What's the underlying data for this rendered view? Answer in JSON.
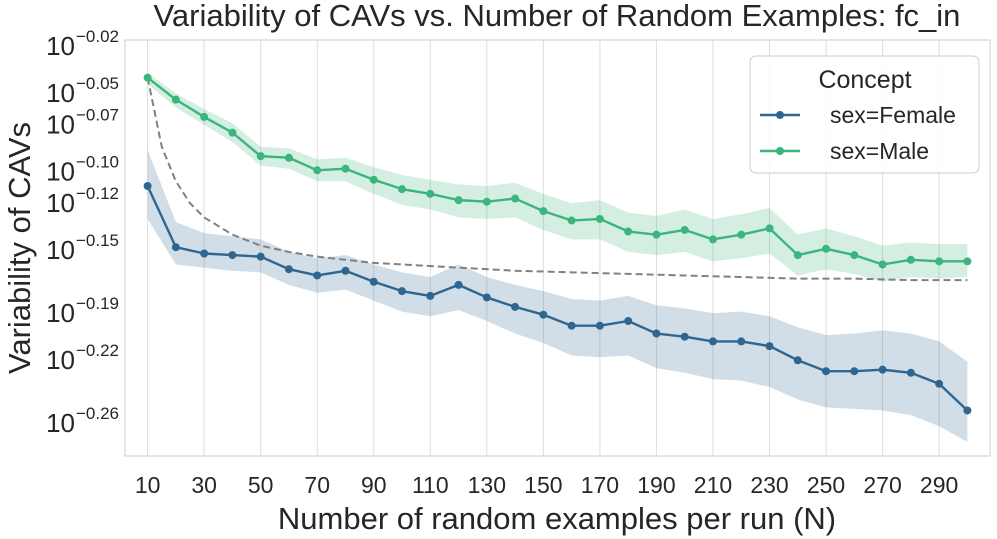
{
  "chart_data": {
    "type": "line",
    "title": "Variability of CAVs vs. Number of Random Examples: fc_in",
    "xlabel": "Number of random examples per run (N)",
    "ylabel": "Variability of CAVs",
    "xlim": [
      2,
      308
    ],
    "ylim_exponent": [
      -0.285,
      -0.02
    ],
    "x_ticks": [
      10,
      30,
      50,
      70,
      90,
      110,
      130,
      150,
      170,
      190,
      210,
      230,
      250,
      270,
      290
    ],
    "x_tick_labels": [
      "10",
      "30",
      "50",
      "70",
      "90",
      "110",
      "130",
      "150",
      "170",
      "190",
      "210",
      "230",
      "250",
      "270",
      "290"
    ],
    "y_tick_base": "10",
    "y_ticks": [
      -0.02,
      -0.05,
      -0.07,
      -0.1,
      -0.12,
      -0.15,
      -0.19,
      -0.22,
      -0.26
    ],
    "y_tick_labels": [
      "−0.02",
      "−0.05",
      "−0.07",
      "−0.10",
      "−0.12",
      "−0.15",
      "−0.19",
      "−0.22",
      "−0.26"
    ],
    "grid": "vertical",
    "x": [
      10,
      20,
      30,
      40,
      50,
      60,
      70,
      80,
      90,
      100,
      110,
      120,
      130,
      140,
      150,
      160,
      170,
      180,
      190,
      200,
      210,
      220,
      230,
      240,
      250,
      260,
      270,
      280,
      290,
      300
    ],
    "series": [
      {
        "name": "sex=Female",
        "color": "#2f6690",
        "values": [
          -0.113,
          -0.152,
          -0.156,
          -0.157,
          -0.158,
          -0.166,
          -0.17,
          -0.167,
          -0.174,
          -0.18,
          -0.183,
          -0.176,
          -0.184,
          -0.19,
          -0.195,
          -0.202,
          -0.202,
          -0.199,
          -0.207,
          -0.209,
          -0.212,
          -0.212,
          -0.215,
          -0.224,
          -0.231,
          -0.231,
          -0.23,
          -0.232,
          -0.239,
          -0.256
        ],
        "lower": [
          -0.134,
          -0.163,
          -0.165,
          -0.167,
          -0.168,
          -0.176,
          -0.181,
          -0.179,
          -0.186,
          -0.193,
          -0.196,
          -0.192,
          -0.199,
          -0.207,
          -0.213,
          -0.221,
          -0.222,
          -0.221,
          -0.229,
          -0.232,
          -0.236,
          -0.237,
          -0.241,
          -0.249,
          -0.254,
          -0.255,
          -0.256,
          -0.259,
          -0.266,
          -0.276
        ],
        "upper": [
          -0.09,
          -0.136,
          -0.143,
          -0.145,
          -0.147,
          -0.155,
          -0.159,
          -0.157,
          -0.163,
          -0.168,
          -0.171,
          -0.163,
          -0.171,
          -0.176,
          -0.18,
          -0.185,
          -0.186,
          -0.183,
          -0.189,
          -0.191,
          -0.194,
          -0.193,
          -0.196,
          -0.203,
          -0.208,
          -0.207,
          -0.205,
          -0.207,
          -0.212,
          -0.225
        ]
      },
      {
        "name": "sex=Male",
        "color": "#3bb57d",
        "values": [
          -0.044,
          -0.058,
          -0.069,
          -0.079,
          -0.094,
          -0.095,
          -0.103,
          -0.102,
          -0.109,
          -0.115,
          -0.118,
          -0.122,
          -0.123,
          -0.121,
          -0.129,
          -0.135,
          -0.134,
          -0.142,
          -0.144,
          -0.141,
          -0.147,
          -0.144,
          -0.14,
          -0.157,
          -0.153,
          -0.157,
          -0.163,
          -0.16,
          -0.161,
          -0.161
        ],
        "lower": [
          -0.048,
          -0.063,
          -0.074,
          -0.085,
          -0.1,
          -0.102,
          -0.11,
          -0.11,
          -0.118,
          -0.125,
          -0.128,
          -0.133,
          -0.134,
          -0.133,
          -0.141,
          -0.147,
          -0.147,
          -0.155,
          -0.157,
          -0.155,
          -0.161,
          -0.159,
          -0.156,
          -0.17,
          -0.166,
          -0.169,
          -0.174,
          -0.171,
          -0.172,
          -0.171
        ],
        "upper": [
          -0.041,
          -0.054,
          -0.064,
          -0.073,
          -0.088,
          -0.089,
          -0.096,
          -0.095,
          -0.101,
          -0.106,
          -0.109,
          -0.112,
          -0.113,
          -0.111,
          -0.118,
          -0.124,
          -0.122,
          -0.13,
          -0.132,
          -0.128,
          -0.134,
          -0.131,
          -0.127,
          -0.144,
          -0.14,
          -0.145,
          -0.151,
          -0.149,
          -0.15,
          -0.15
        ]
      }
    ],
    "reference_curve": {
      "style": "dashed",
      "color": "#808080",
      "x": [
        10,
        15,
        20,
        25,
        30,
        40,
        50,
        60,
        70,
        80,
        90,
        100,
        120,
        140,
        160,
        180,
        200,
        220,
        240,
        260,
        280,
        300
      ],
      "values": [
        -0.044,
        -0.088,
        -0.11,
        -0.124,
        -0.133,
        -0.144,
        -0.151,
        -0.155,
        -0.158,
        -0.16,
        -0.162,
        -0.163,
        -0.165,
        -0.167,
        -0.168,
        -0.169,
        -0.17,
        -0.171,
        -0.172,
        -0.172,
        -0.173,
        -0.173
      ]
    },
    "legend": {
      "title": "Concept",
      "position": "top-right",
      "entries": [
        "sex=Female",
        "sex=Male"
      ]
    }
  }
}
